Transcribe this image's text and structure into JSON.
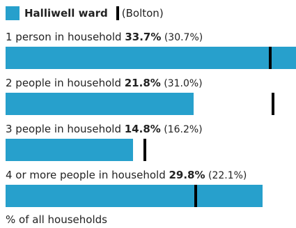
{
  "legend": {
    "area_label": "Halliwell ward",
    "comparison_label": "(Bolton)",
    "area_color": "#27a0cc",
    "comparison_color": "#000000"
  },
  "chart_data": {
    "type": "bar",
    "orientation": "horizontal",
    "categories": [
      "1 person in household",
      "2 people in household",
      "3 people in household",
      "4 or more people in household"
    ],
    "series": [
      {
        "name": "Halliwell ward",
        "values": [
          33.7,
          21.8,
          14.8,
          29.8
        ],
        "labels": [
          "33.7%",
          "21.8%",
          "14.8%",
          "29.8%"
        ]
      },
      {
        "name": "(Bolton)",
        "values": [
          30.7,
          31.0,
          16.2,
          22.1
        ],
        "labels": [
          "(30.7%)",
          "(31.0%)",
          "(16.2%)",
          "(22.1%)"
        ]
      }
    ],
    "xlim": [
      0,
      33.7
    ],
    "xlabel": "% of all households"
  }
}
